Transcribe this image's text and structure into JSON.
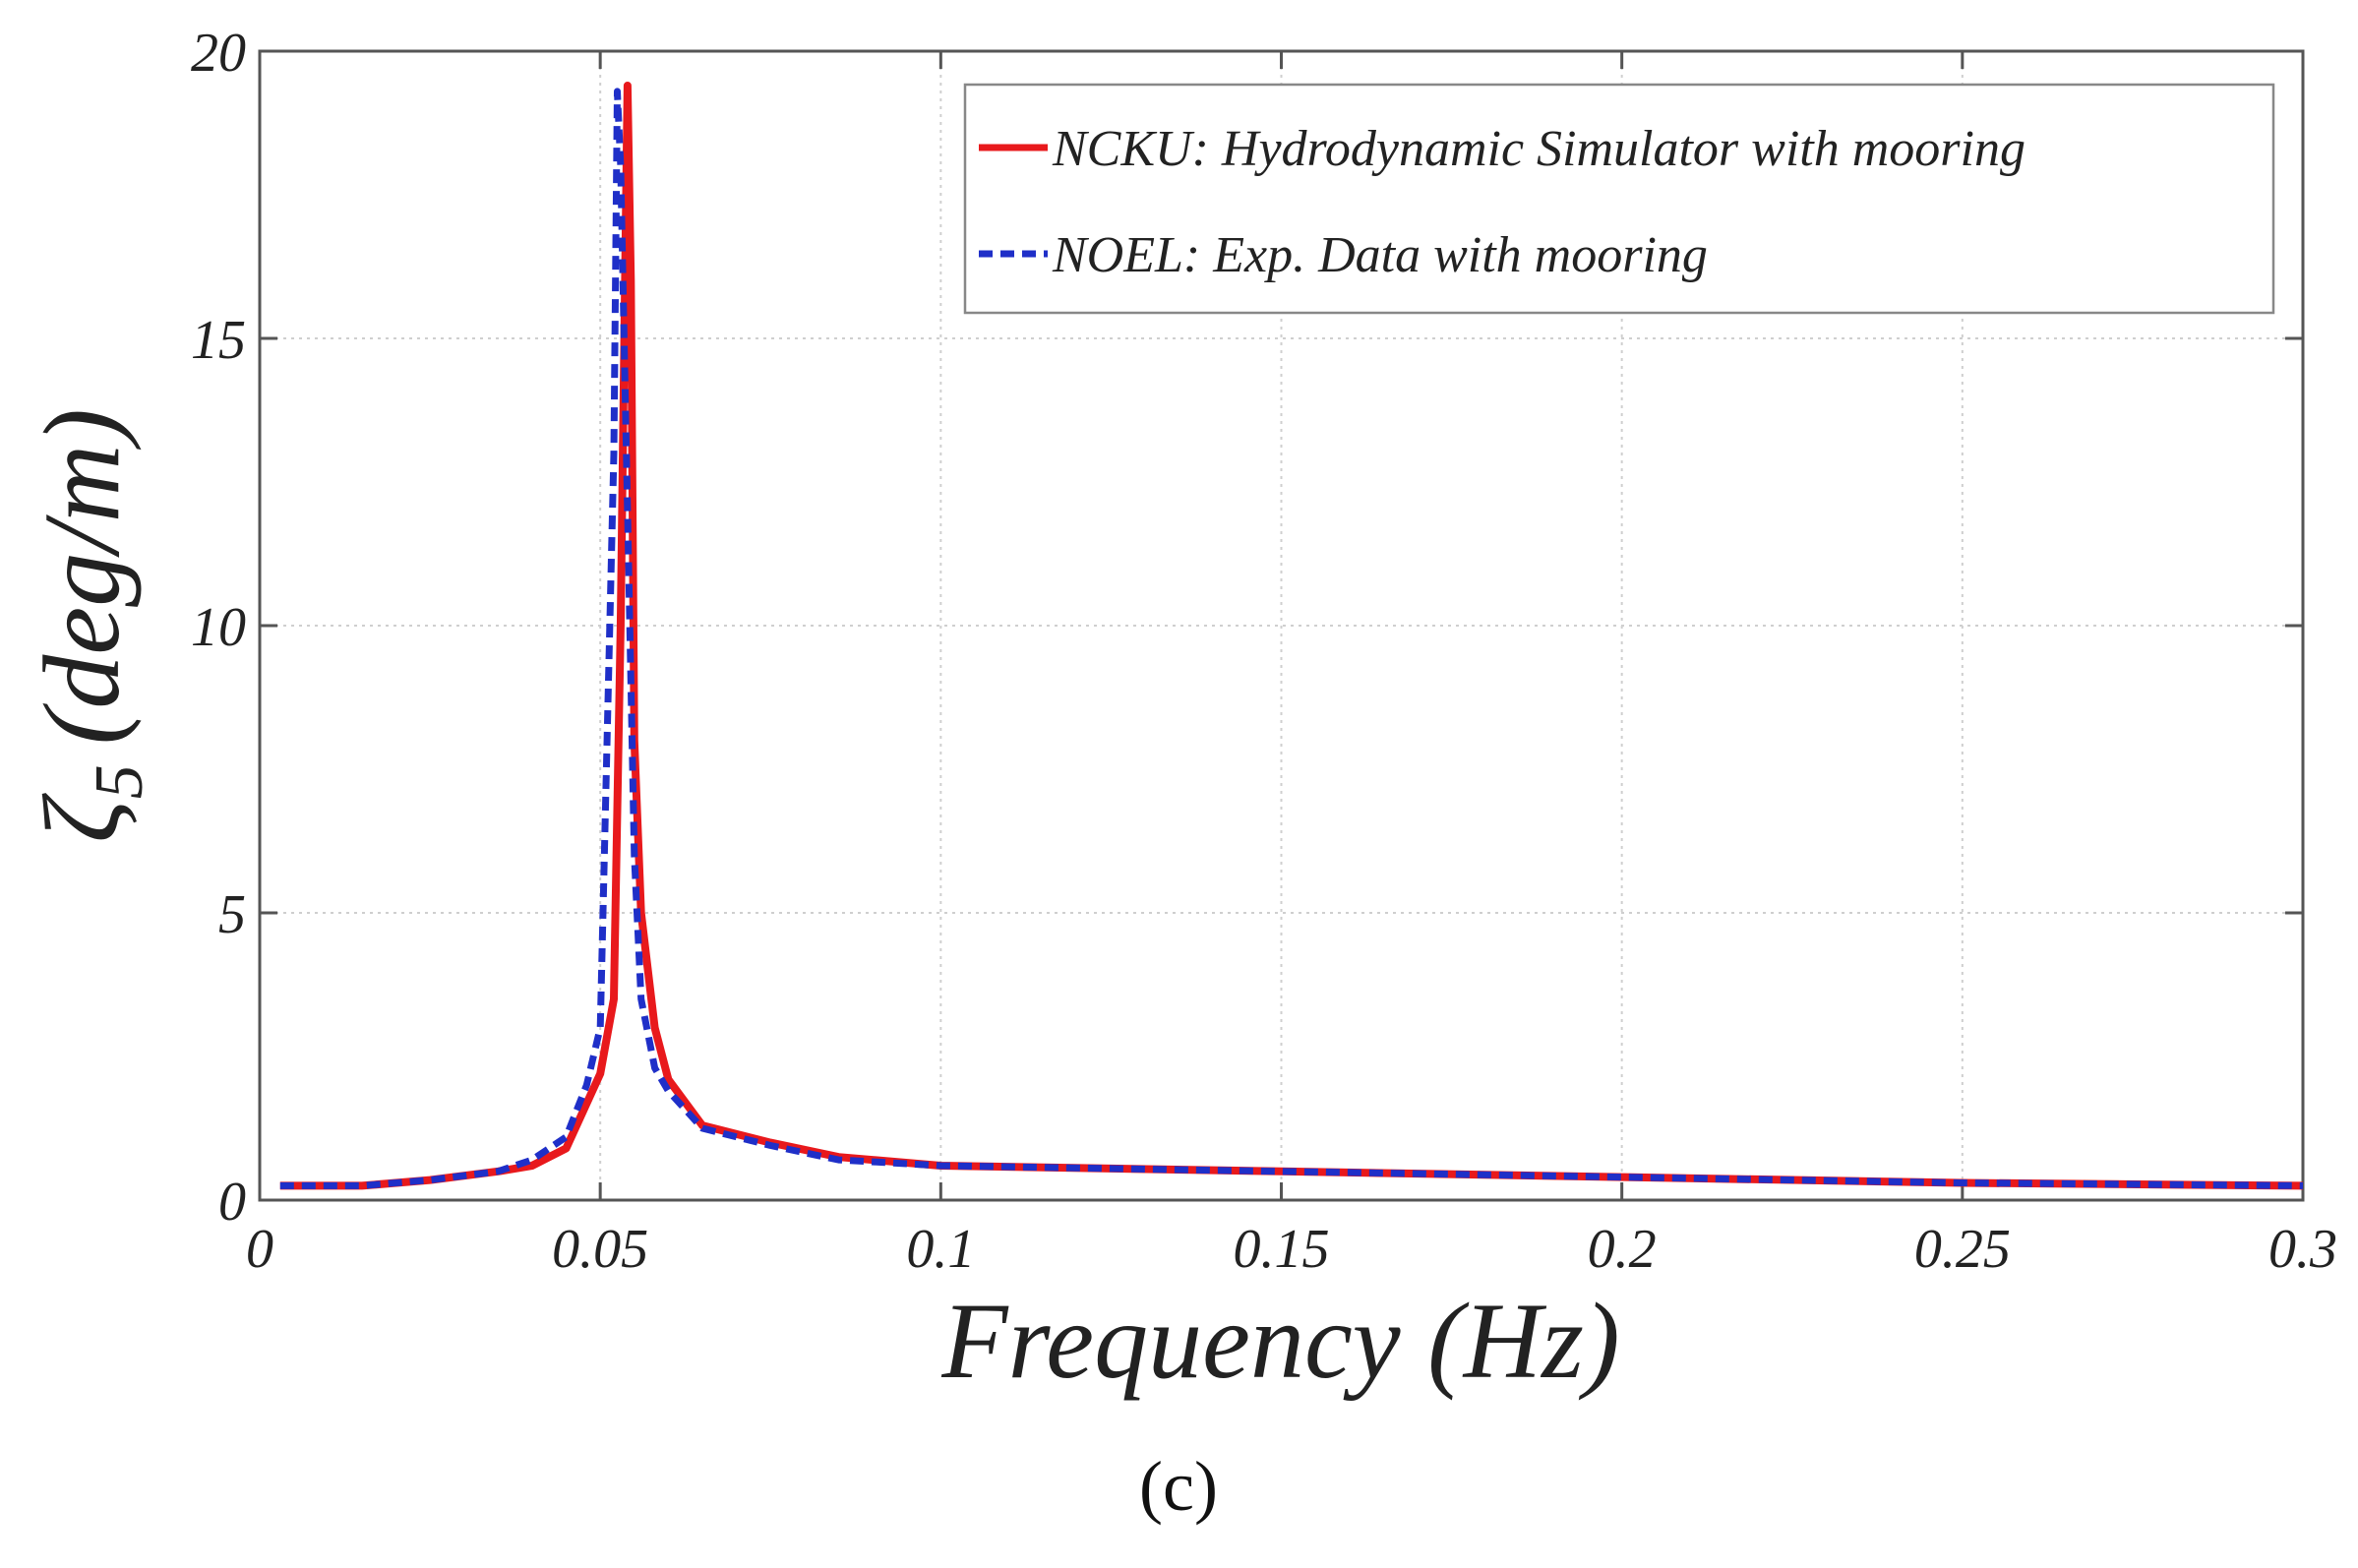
{
  "chart_data": {
    "type": "line",
    "title": "",
    "xlabel": "Frequency (Hz)",
    "ylabel": "ζ",
    "ylabel_subscript": "5",
    "ylabel_unit": "(deg/m)",
    "xlim": [
      0,
      0.3
    ],
    "ylim": [
      0,
      20
    ],
    "xticks": [
      0,
      0.05,
      0.1,
      0.15,
      0.2,
      0.25,
      0.3
    ],
    "xtick_labels": [
      "0",
      "0.05",
      "0.1",
      "0.15",
      "0.2",
      "0.25",
      "0.3"
    ],
    "yticks": [
      0,
      5,
      10,
      15,
      20
    ],
    "ytick_labels": [
      "0",
      "5",
      "10",
      "15",
      "20"
    ],
    "grid": true,
    "legend_position": "top-right",
    "caption": "(c)",
    "series": [
      {
        "name": "NCKU: Hydrodynamic Simulator with mooring",
        "color": "#e8191c",
        "style": "solid",
        "x": [
          0.003,
          0.015,
          0.025,
          0.035,
          0.04,
          0.045,
          0.05,
          0.052,
          0.053,
          0.054,
          0.0545,
          0.055,
          0.056,
          0.058,
          0.06,
          0.065,
          0.075,
          0.085,
          0.1,
          0.15,
          0.2,
          0.25,
          0.3
        ],
        "values": [
          0.25,
          0.25,
          0.35,
          0.5,
          0.6,
          0.9,
          2.2,
          3.5,
          10.0,
          19.4,
          16.0,
          8.0,
          5.0,
          3.0,
          2.1,
          1.3,
          1.0,
          0.75,
          0.6,
          0.5,
          0.4,
          0.3,
          0.25
        ]
      },
      {
        "name": "NOEL: Exp. Data with mooring",
        "color": "#1f2fc8",
        "style": "dashed",
        "x": [
          0.003,
          0.015,
          0.025,
          0.035,
          0.04,
          0.045,
          0.048,
          0.05,
          0.051,
          0.052,
          0.0525,
          0.053,
          0.054,
          0.055,
          0.056,
          0.058,
          0.06,
          0.065,
          0.075,
          0.085,
          0.1,
          0.15,
          0.2,
          0.25,
          0.3
        ],
        "values": [
          0.25,
          0.25,
          0.35,
          0.5,
          0.7,
          1.1,
          2.0,
          3.0,
          8.0,
          13.0,
          19.3,
          18.0,
          12.0,
          6.0,
          3.5,
          2.3,
          1.9,
          1.25,
          0.95,
          0.7,
          0.6,
          0.5,
          0.4,
          0.3,
          0.25
        ]
      }
    ]
  }
}
